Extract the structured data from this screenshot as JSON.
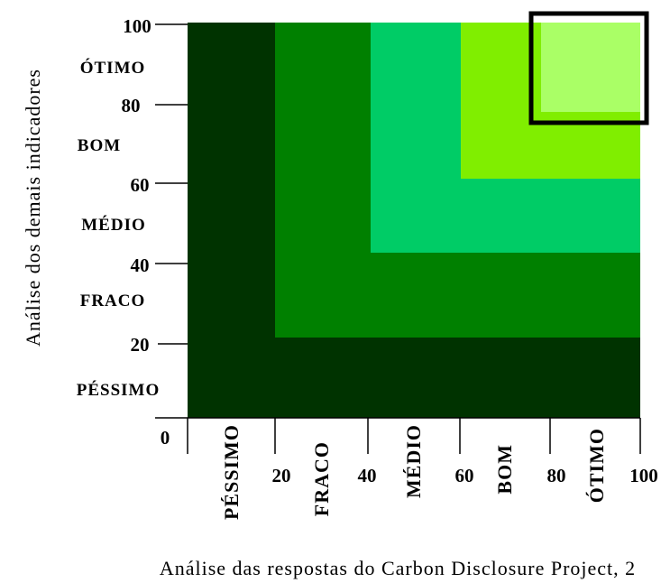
{
  "diagram": {
    "y_axis_title": "Análise dos demais indicadores",
    "x_axis_title": "Análise das respostas do Carbon Disclosure Project, 2",
    "origin_label": "0",
    "y_ticks": [
      "20",
      "40",
      "60",
      "80",
      "100"
    ],
    "x_ticks": [
      "20",
      "40",
      "60",
      "80",
      "100"
    ],
    "y_categories": [
      "PÉSSIMO",
      "FRACO",
      "MÉDIO",
      "BOM",
      "ÓTIMO"
    ],
    "x_categories": [
      "PÉSSIMO",
      "FRACO",
      "MÉDIO",
      "BOM",
      "ÓTIMO"
    ],
    "zones": [
      {
        "name": "PÉSSIMO",
        "color": "#003300"
      },
      {
        "name": "FRACO",
        "color": "#008000"
      },
      {
        "name": "MÉDIO",
        "color": "#00CC66"
      },
      {
        "name": "BOM",
        "color": "#80EE00"
      },
      {
        "name": "ÓTIMO",
        "color": "#AAFF66"
      }
    ],
    "highlight_color": "#000000"
  }
}
